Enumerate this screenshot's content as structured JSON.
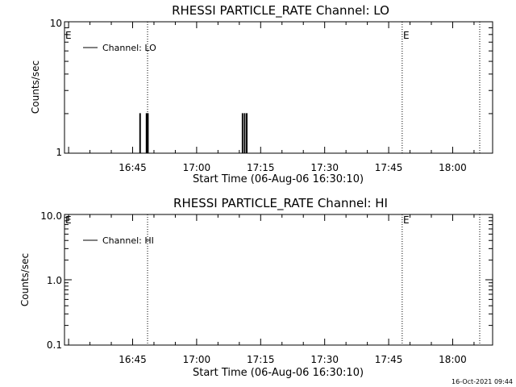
{
  "chart_data": [
    {
      "type": "line",
      "title": "RHESSI PARTICLE_RATE Channel: LO",
      "xlabel": "Start Time (06-Aug-06 16:30:10)",
      "ylabel": "Counts/sec",
      "yscale": "log",
      "ylim": [
        1,
        10
      ],
      "ytick_labels": [
        "10",
        "1"
      ],
      "x_ticks": [
        "16:45",
        "17:00",
        "17:15",
        "17:30",
        "17:45",
        "18:00"
      ],
      "legend": "top-left",
      "series": [
        {
          "name": "Channel: LO",
          "segments": [
            {
              "x": [
                "16:46:40",
                "16:46:40",
                "16:46:50",
                "16:46:50"
              ],
              "y": [
                1,
                2,
                2,
                1
              ]
            },
            {
              "x": [
                "16:48:10",
                "16:48:10",
                "16:48:20",
                "16:48:20"
              ],
              "y": [
                1,
                2,
                2,
                1
              ]
            },
            {
              "x": [
                "16:48:30",
                "16:48:30",
                "16:48:40",
                "16:48:40"
              ],
              "y": [
                1,
                2,
                2,
                1
              ]
            },
            {
              "x": [
                "17:10:40",
                "17:10:40",
                "17:10:50",
                "17:10:50"
              ],
              "y": [
                1,
                2,
                2,
                1
              ]
            },
            {
              "x": [
                "17:11:10",
                "17:11:10",
                "17:11:20",
                "17:11:20"
              ],
              "y": [
                1,
                2,
                2,
                1
              ]
            },
            {
              "x": [
                "17:11:40",
                "17:11:40",
                "17:11:50",
                "17:11:50"
              ],
              "y": [
                1,
                2,
                2,
                1
              ]
            }
          ]
        }
      ],
      "markers": [
        {
          "type": "dotted",
          "x": "16:48:30"
        },
        {
          "type": "dotted",
          "x": "17:48:10",
          "label": "E"
        },
        {
          "type": "dotted",
          "x": "18:06:20"
        }
      ],
      "corner_label": "E"
    },
    {
      "type": "line",
      "title": "RHESSI PARTICLE_RATE Channel: HI",
      "xlabel": "Start Time (06-Aug-06 16:30:10)",
      "ylabel": "Counts/sec",
      "yscale": "log",
      "ylim": [
        0.1,
        10
      ],
      "ytick_labels": [
        "10.0",
        "1.0",
        "0.1"
      ],
      "x_ticks": [
        "16:45",
        "17:00",
        "17:15",
        "17:30",
        "17:45",
        "18:00"
      ],
      "legend": "top-left",
      "series": [
        {
          "name": "Channel: HI",
          "segments": []
        }
      ],
      "markers": [
        {
          "type": "dotted",
          "x": "16:48:30"
        },
        {
          "type": "dotted",
          "x": "17:48:10",
          "label": "E"
        },
        {
          "type": "dotted",
          "x": "18:06:20"
        }
      ],
      "corner_label": "E"
    }
  ],
  "timestamp": "16-Oct-2021 09:44"
}
